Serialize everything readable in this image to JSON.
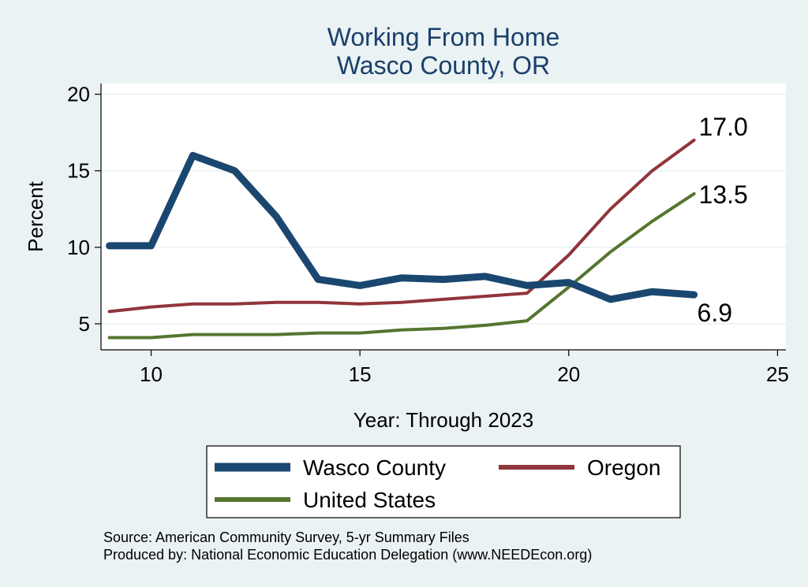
{
  "chart_data": {
    "type": "line",
    "title": "Working From Home",
    "subtitle": "Wasco County, OR",
    "xlabel": "Year: Through 2023",
    "ylabel": "Percent",
    "xlim": [
      8.8,
      25.2
    ],
    "ylim": [
      3.3,
      20.7
    ],
    "xticks": [
      "10",
      "15",
      "20",
      "25"
    ],
    "yticks": [
      "5",
      "10",
      "15",
      "20"
    ],
    "grid": true,
    "legend_position": "bottom",
    "series": [
      {
        "name": "Wasco County",
        "color": "#1a476f",
        "x": [
          9,
          10,
          11,
          12,
          13,
          14,
          15,
          16,
          17,
          18,
          19,
          20,
          21,
          22,
          23
        ],
        "values": [
          10.1,
          10.1,
          16.0,
          15.0,
          12.0,
          7.9,
          7.5,
          8.0,
          7.9,
          8.1,
          7.5,
          7.7,
          6.6,
          7.1,
          6.9
        ],
        "end_label": "6.9"
      },
      {
        "name": "Oregon",
        "color": "#90353b",
        "x": [
          9,
          10,
          11,
          12,
          13,
          14,
          15,
          16,
          17,
          18,
          19,
          20,
          21,
          22,
          23
        ],
        "values": [
          5.8,
          6.1,
          6.3,
          6.3,
          6.4,
          6.4,
          6.3,
          6.4,
          6.6,
          6.8,
          7.0,
          9.5,
          12.5,
          15.0,
          17.0
        ],
        "end_label": "17.0"
      },
      {
        "name": "United States",
        "color": "#55752f",
        "x": [
          9,
          10,
          11,
          12,
          13,
          14,
          15,
          16,
          17,
          18,
          19,
          20,
          21,
          22,
          23
        ],
        "values": [
          4.1,
          4.1,
          4.3,
          4.3,
          4.3,
          4.4,
          4.4,
          4.6,
          4.7,
          4.9,
          5.2,
          7.4,
          9.7,
          11.7,
          13.5
        ],
        "end_label": "13.5"
      }
    ]
  },
  "footer": {
    "source": "Source: American Community Survey, 5-yr Summary Files",
    "produced": "Produced by: National Economic Education Delegation (www.NEEDEcon.org)"
  }
}
